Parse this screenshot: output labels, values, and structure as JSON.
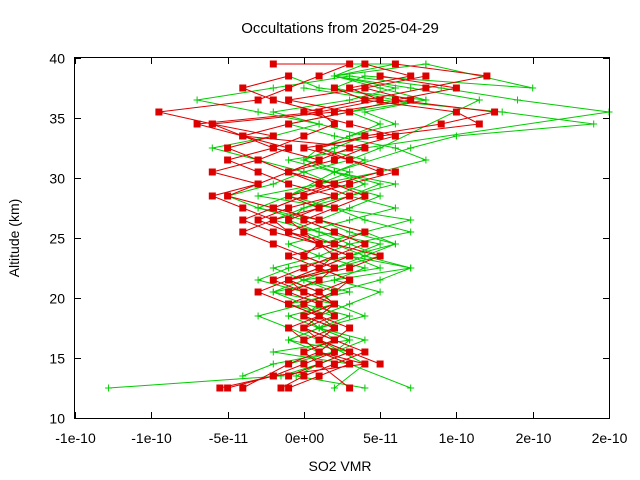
{
  "chart_data": {
    "type": "scatter",
    "title": "Occultations from 2025-04-29",
    "xlabel": "SO2 VMR",
    "ylabel": "Altitude (km)",
    "xlim": [
      -1.5e-10,
      2e-10
    ],
    "ylim": [
      10,
      40
    ],
    "x_ticks": [
      -1.5e-10,
      -1e-10,
      -5e-11,
      0,
      5e-11,
      1e-10,
      1.5e-10,
      2e-10
    ],
    "x_tick_labels": [
      "-1e-10",
      "-1e-10",
      "-5e-11",
      "0e+00",
      "5e-11",
      "1e-10",
      "2e-10",
      "2e-10"
    ],
    "y_ticks": [
      10,
      15,
      20,
      25,
      30,
      35,
      40
    ],
    "y_tick_labels": [
      "10",
      "15",
      "20",
      "25",
      "30",
      "35",
      "40"
    ],
    "grid": false,
    "legend": "none",
    "series": [
      {
        "color": "#00cc00",
        "marker": "plus",
        "profiles": [
          {
            "x": [
              -1.28e-10,
              -1.5e-11,
              1e-11,
              0,
              2e-11,
              1e-11,
              0,
              1e-11,
              2e-11,
              0,
              -2e-11,
              1e-11,
              3e-11,
              1e-11,
              -1e-11,
              0,
              2e-11,
              4e-11,
              2e-11,
              0,
              1e-11,
              3e-11,
              5e-11,
              3e-11,
              6e-11,
              2e-11,
              4e-11,
              1.5e-10,
              8e-11
            ],
            "y": [
              12.5,
              13.5,
              14.5,
              15.5,
              16.5,
              17.5,
              18.5,
              19.5,
              20.5,
              21.5,
              22.5,
              23.5,
              24.5,
              25.5,
              26.5,
              27.5,
              28.5,
              29.5,
              30.5,
              31.5,
              32.5,
              33.5,
              34.5,
              35.5,
              36.5,
              37.5,
              38.5,
              37.5,
              39.5
            ]
          },
          {
            "x": [
              7e-11,
              3e-11,
              -2e-11,
              3e-11,
              1e-11,
              2e-11,
              -1e-11,
              3e-11,
              0,
              2e-11,
              5e-11,
              3e-11,
              7e-11,
              4e-11,
              2e-11,
              -1e-11,
              1e-11,
              3e-11,
              0,
              2e-11,
              4e-11,
              1e-11,
              -2e-11,
              3e-11,
              6e-11,
              2e-11,
              8e-11
            ],
            "y": [
              12.5,
              14.5,
              15.5,
              16.5,
              17.5,
              18.5,
              19.5,
              20.5,
              21.5,
              22.5,
              23.5,
              24.5,
              25.5,
              26.5,
              27.5,
              28.5,
              29.5,
              30.5,
              31.5,
              32.5,
              33.5,
              34.5,
              35.5,
              36.5,
              37.5,
              38.5,
              39.5
            ]
          },
          {
            "x": [
              -4e-11,
              -2e-11,
              2e-11,
              4e-11,
              1e-11,
              -1e-11,
              2e-11,
              0,
              -3e-11,
              -1e-11,
              3e-11,
              5e-11,
              1e-11,
              -2e-11,
              0,
              3e-11,
              6e-11,
              2e-11,
              -1e-11,
              4e-11,
              2e-10,
              1.4e-10,
              9e-11,
              3e-11
            ],
            "y": [
              13.5,
              14.5,
              15.5,
              16.5,
              17.5,
              18.5,
              19.5,
              20.5,
              21.5,
              22.5,
              23.5,
              24.5,
              25.5,
              26.5,
              27.5,
              28.5,
              29.5,
              30.5,
              31.5,
              32.5,
              35.5,
              36.5,
              37.5,
              38.5
            ]
          },
          {
            "x": [
              2e-11,
              4e-11,
              1e-11,
              -3e-11,
              0,
              2e-11,
              5e-11,
              7e-11,
              3e-11,
              6e-11,
              4e-11,
              1e-11,
              -3e-11,
              -1e-11,
              2e-11,
              7e-11,
              1e-10,
              1.9e-10,
              1.3e-10,
              5e-11,
              0
            ],
            "y": [
              12.5,
              14.5,
              16.5,
              18.5,
              19.5,
              20.5,
              21.5,
              22.5,
              23.5,
              24.5,
              25.5,
              26.5,
              27.5,
              28.5,
              30.5,
              32.5,
              33.5,
              34.5,
              35.5,
              36.5,
              37.5
            ]
          },
          {
            "x": [
              4e-11,
              -5e-12,
              1e-11,
              3e-11,
              -1e-11,
              1e-11,
              4e-11,
              2e-11,
              -2e-11,
              0,
              5e-11,
              3e-11,
              1e-11,
              4e-11,
              7e-11,
              2e-11,
              -3e-11,
              1e-11,
              5e-11,
              8e-11,
              6e-11,
              2e-11,
              -1e-11,
              3e-11,
              8e-11,
              1e-11,
              -1e-11
            ],
            "y": [
              12.5,
              13.5,
              14.5,
              15.5,
              16.5,
              17.5,
              18.5,
              19.5,
              20.5,
              21.5,
              22.5,
              23.5,
              24.5,
              25.5,
              26.5,
              27.5,
              28.5,
              29.5,
              30.5,
              31.5,
              32.5,
              33.5,
              34.5,
              35.5,
              36.5,
              37.5,
              38.5
            ]
          },
          {
            "x": [
              -1e-11,
              2e-11,
              3e-11,
              1e-11,
              0,
              2e-11,
              1e-11,
              -1e-11,
              2e-11,
              4e-11,
              2e-11,
              0,
              3e-11,
              6e-11,
              3e-11,
              5e-11,
              2e-11,
              4e-11,
              1e-11,
              3e-11,
              6e-11,
              4e-11,
              8e-11,
              5e-11,
              2e-11,
              4e-11
            ],
            "y": [
              14.5,
              15.5,
              16.5,
              17.5,
              18.5,
              19.5,
              20.5,
              21.5,
              22.5,
              23.5,
              24.5,
              25.5,
              26.5,
              27.5,
              28.5,
              29.5,
              30.5,
              31.5,
              32.5,
              33.5,
              34.5,
              35.5,
              36.5,
              37.5,
              38.5,
              39.5
            ]
          },
          {
            "x": [
              3e-11,
              1e-11,
              -1e-11,
              1e-11,
              3e-11,
              0,
              -2e-11,
              2e-11,
              4e-11,
              1e-11,
              -1e-11,
              2e-11,
              0,
              -3e-11,
              -5e-11,
              -2e-11,
              0,
              -3e-11,
              -6e-11,
              -2e-11,
              1e-11,
              -3e-11,
              -7e-11,
              -2e-11,
              3e-11
            ],
            "y": [
              14.5,
              15.5,
              16.5,
              17.5,
              18.5,
              19.5,
              20.5,
              21.5,
              22.5,
              23.5,
              24.5,
              25.5,
              26.5,
              27.5,
              28.5,
              29.5,
              30.5,
              31.5,
              32.5,
              33.5,
              34.5,
              35.5,
              36.5,
              37.5,
              38.5
            ]
          },
          {
            "x": [
              1e-11,
              2e-11,
              0,
              1e-11,
              3e-11,
              5e-11,
              2e-11,
              7e-11,
              4e-11,
              6e-11,
              3e-11,
              1e-11,
              3e-11,
              5e-11,
              2e-11,
              0,
              3e-11,
              5e-11,
              1.15e-10,
              7e-11,
              2e-11,
              6e-11,
              3e-11
            ],
            "y": [
              15.5,
              16.5,
              17.5,
              18.5,
              19.5,
              20.5,
              21.5,
              22.5,
              23.5,
              24.5,
              25.5,
              26.5,
              27.5,
              28.5,
              29.5,
              30.5,
              31.5,
              32.5,
              36.5,
              37.5,
              38.5,
              39.5,
              39.5
            ]
          }
        ]
      },
      {
        "color": "#dd0000",
        "marker": "square",
        "profiles": [
          {
            "x": [
              -5.5e-11,
              -2e-11,
              0,
              2e-11,
              1e-11,
              0,
              2e-11,
              1e-11,
              -1e-11,
              1e-11,
              2e-11,
              0,
              1e-11,
              -1e-11,
              -2e-11,
              -4e-11,
              -6e-11,
              -3e-11,
              -1e-11,
              -3e-11,
              -5e-11,
              -2e-11,
              -6e-11,
              -9.5e-11,
              -3e-11,
              -1e-11,
              1e-11,
              3e-11,
              -2e-11
            ],
            "y": [
              12.5,
              13.5,
              14.5,
              15.5,
              16.5,
              17.5,
              18.5,
              19.5,
              20.5,
              21.5,
              22.5,
              23.5,
              24.5,
              25.5,
              26.5,
              27.5,
              28.5,
              29.5,
              30.5,
              31.5,
              32.5,
              33.5,
              34.5,
              35.5,
              36.5,
              37.5,
              38.5,
              39.5,
              39.5
            ]
          },
          {
            "x": [
              -4e-11,
              -1e-11,
              1e-11,
              0,
              -1e-11,
              1e-11,
              2e-11,
              0,
              -2e-11,
              0,
              2e-11,
              1e-11,
              -2e-11,
              -4e-11,
              -2e-11,
              -5e-11,
              -3e-11,
              -6e-11,
              -3e-11,
              -1e-11,
              -4e-11,
              -7e-11,
              1e-11,
              5e-11,
              3e-11,
              7e-11,
              4e-11
            ],
            "y": [
              12.5,
              14.5,
              15.5,
              16.5,
              17.5,
              18.5,
              19.5,
              20.5,
              21.5,
              22.5,
              23.5,
              24.5,
              25.5,
              26.5,
              27.5,
              28.5,
              29.5,
              30.5,
              31.5,
              32.5,
              33.5,
              34.5,
              35.5,
              36.5,
              37.5,
              38.5,
              39.5
            ]
          },
          {
            "x": [
              -1e-11,
              1e-11,
              3e-11,
              1e-11,
              0,
              2e-11,
              1e-11,
              -1e-11,
              -3e-11,
              -1e-11,
              2e-11,
              0,
              -2e-11,
              -4e-11,
              -2e-11,
              1e-11,
              -1e-11,
              2e-11,
              5e-11,
              3e-11,
              1e-11,
              4e-11,
              9e-11,
              1.25e-10,
              6e-11,
              1e-10,
              5e-11
            ],
            "y": [
              12.5,
              13.5,
              14.5,
              15.5,
              16.5,
              17.5,
              18.5,
              19.5,
              20.5,
              21.5,
              22.5,
              23.5,
              24.5,
              25.5,
              26.5,
              27.5,
              28.5,
              29.5,
              30.5,
              31.5,
              32.5,
              33.5,
              34.5,
              35.5,
              36.5,
              37.5,
              38.5
            ]
          },
          {
            "x": [
              3e-11,
              1e-11,
              0,
              2e-11,
              3e-11,
              1e-11,
              0,
              2e-11,
              3e-11,
              1e-11,
              2e-11,
              4e-11,
              2e-11,
              0,
              2e-11,
              4e-11,
              2e-11,
              -1e-11,
              1e-11,
              3e-11,
              6e-11,
              3e-11,
              0,
              4e-11,
              8e-11,
              1.2e-10,
              6e-11
            ],
            "y": [
              12.5,
              14.5,
              15.5,
              16.5,
              17.5,
              18.5,
              19.5,
              20.5,
              21.5,
              22.5,
              23.5,
              24.5,
              25.5,
              26.5,
              27.5,
              28.5,
              29.5,
              30.5,
              31.5,
              32.5,
              33.5,
              34.5,
              35.5,
              36.5,
              37.5,
              38.5,
              39.5
            ]
          },
          {
            "x": [
              -1.5e-11,
              0,
              2e-11,
              4e-11,
              2e-11,
              0,
              1e-11,
              -1e-11,
              1e-11,
              3e-11,
              1e-11,
              -1e-11,
              2e-11,
              4e-11,
              1e-11,
              -2e-11,
              0,
              3e-11,
              6e-11,
              3e-11,
              0,
              5e-11,
              1.15e-10,
              1e-10,
              4e-11,
              2e-11
            ],
            "y": [
              12.5,
              13.5,
              14.5,
              15.5,
              16.5,
              17.5,
              18.5,
              19.5,
              20.5,
              21.5,
              22.5,
              23.5,
              24.5,
              25.5,
              26.5,
              27.5,
              28.5,
              29.5,
              30.5,
              31.5,
              32.5,
              33.5,
              34.5,
              35.5,
              36.5,
              37.5
            ]
          },
          {
            "x": [
              -5e-11,
              -2e-11,
              4e-11,
              1e-11,
              2e-11,
              0,
              1e-11,
              2e-11,
              0,
              -1e-11,
              3e-11,
              5e-11,
              2e-11,
              -1e-11,
              1e-11,
              -2e-11,
              0,
              2e-11,
              -1e-11,
              2e-11,
              4e-11,
              -4e-11,
              -6e-11,
              2e-11,
              7e-11,
              4e-11
            ],
            "y": [
              12.5,
              13.5,
              14.5,
              15.5,
              16.5,
              17.5,
              18.5,
              19.5,
              20.5,
              21.5,
              22.5,
              23.5,
              24.5,
              25.5,
              26.5,
              27.5,
              28.5,
              29.5,
              30.5,
              31.5,
              32.5,
              33.5,
              34.5,
              35.5,
              36.5,
              37.5
            ]
          },
          {
            "x": [
              -1e-11,
              1e-11,
              3e-11,
              1e-11,
              2e-11,
              0,
              2e-11,
              1e-11,
              -1e-11,
              1e-11,
              3e-11,
              1e-11,
              -1e-11,
              -3e-11,
              -1e-11,
              2e-11,
              -1e-11,
              -3e-11,
              -5e-11,
              -2e-11,
              -4e-11,
              -1e-11,
              3e-11,
              -1e-11,
              4e-11,
              8e-11
            ],
            "y": [
              13.5,
              14.5,
              15.5,
              16.5,
              17.5,
              18.5,
              19.5,
              20.5,
              21.5,
              22.5,
              23.5,
              24.5,
              25.5,
              26.5,
              27.5,
              28.5,
              29.5,
              30.5,
              31.5,
              32.5,
              33.5,
              34.5,
              35.5,
              36.5,
              37.5,
              38.5
            ]
          },
          {
            "x": [
              5e-11,
              3e-11,
              1e-11,
              2e-11,
              0,
              2e-11,
              1e-11,
              -1e-11,
              1e-11,
              3e-11,
              1e-11,
              0,
              -1e-11,
              1e-11,
              3e-11,
              1e-11,
              -1e-11,
              1e-11,
              -2e-11,
              0,
              2e-11,
              1e-11,
              -2e-11,
              -4e-11,
              -1e-11
            ],
            "y": [
              14.5,
              15.5,
              16.5,
              17.5,
              18.5,
              19.5,
              20.5,
              21.5,
              22.5,
              23.5,
              24.5,
              25.5,
              26.5,
              27.5,
              28.5,
              29.5,
              30.5,
              31.5,
              32.5,
              33.5,
              34.5,
              35.5,
              36.5,
              37.5,
              38.5
            ]
          }
        ]
      }
    ]
  }
}
